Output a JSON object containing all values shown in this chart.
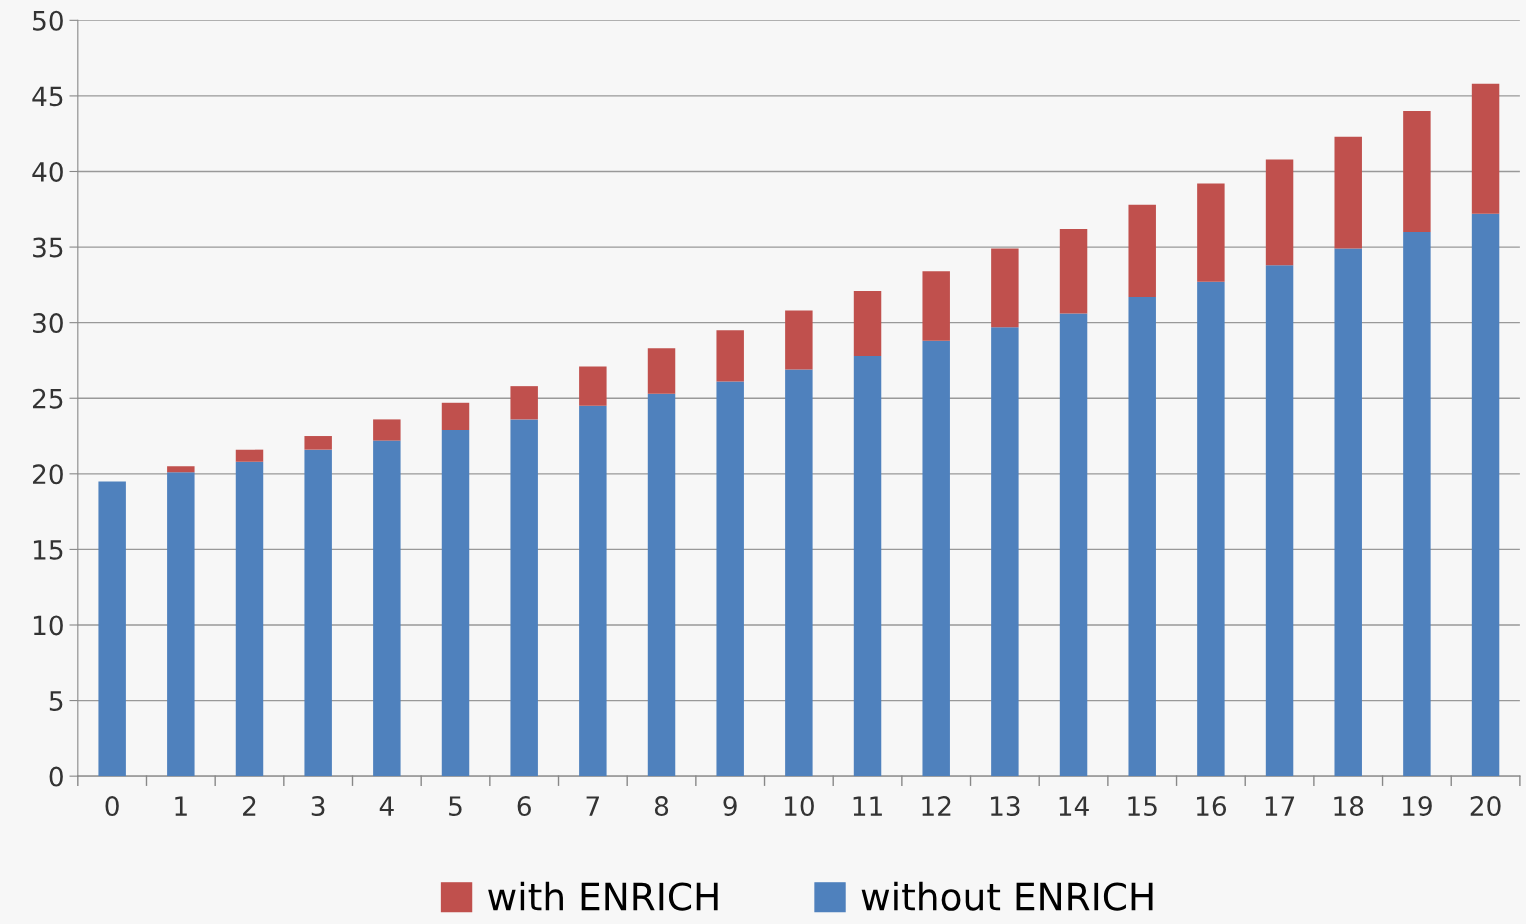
{
  "chart_data": {
    "type": "bar",
    "stacked": true,
    "categories": [
      "0",
      "1",
      "2",
      "3",
      "4",
      "5",
      "6",
      "7",
      "8",
      "9",
      "10",
      "11",
      "12",
      "13",
      "14",
      "15",
      "16",
      "17",
      "18",
      "19",
      "20"
    ],
    "series": [
      {
        "name": "without ENRICH",
        "color": "#4f81bd",
        "values": [
          19.5,
          20.1,
          20.8,
          21.6,
          22.2,
          22.9,
          23.6,
          24.5,
          25.3,
          26.1,
          26.9,
          27.8,
          28.8,
          29.7,
          30.6,
          31.7,
          32.7,
          33.8,
          34.9,
          36.0,
          37.2
        ]
      },
      {
        "name": "with ENRICH",
        "color": "#c0504d",
        "values": [
          0,
          0.4,
          0.8,
          0.9,
          1.4,
          1.8,
          2.2,
          2.6,
          3.0,
          3.4,
          3.9,
          4.3,
          4.6,
          5.2,
          5.6,
          6.1,
          6.5,
          7.0,
          7.4,
          8.0,
          8.6
        ]
      }
    ],
    "ylim": [
      0,
      50
    ],
    "yticks": [
      0,
      5,
      10,
      15,
      20,
      25,
      30,
      35,
      40,
      45,
      50
    ],
    "grid": "y",
    "legend": "bottom"
  }
}
